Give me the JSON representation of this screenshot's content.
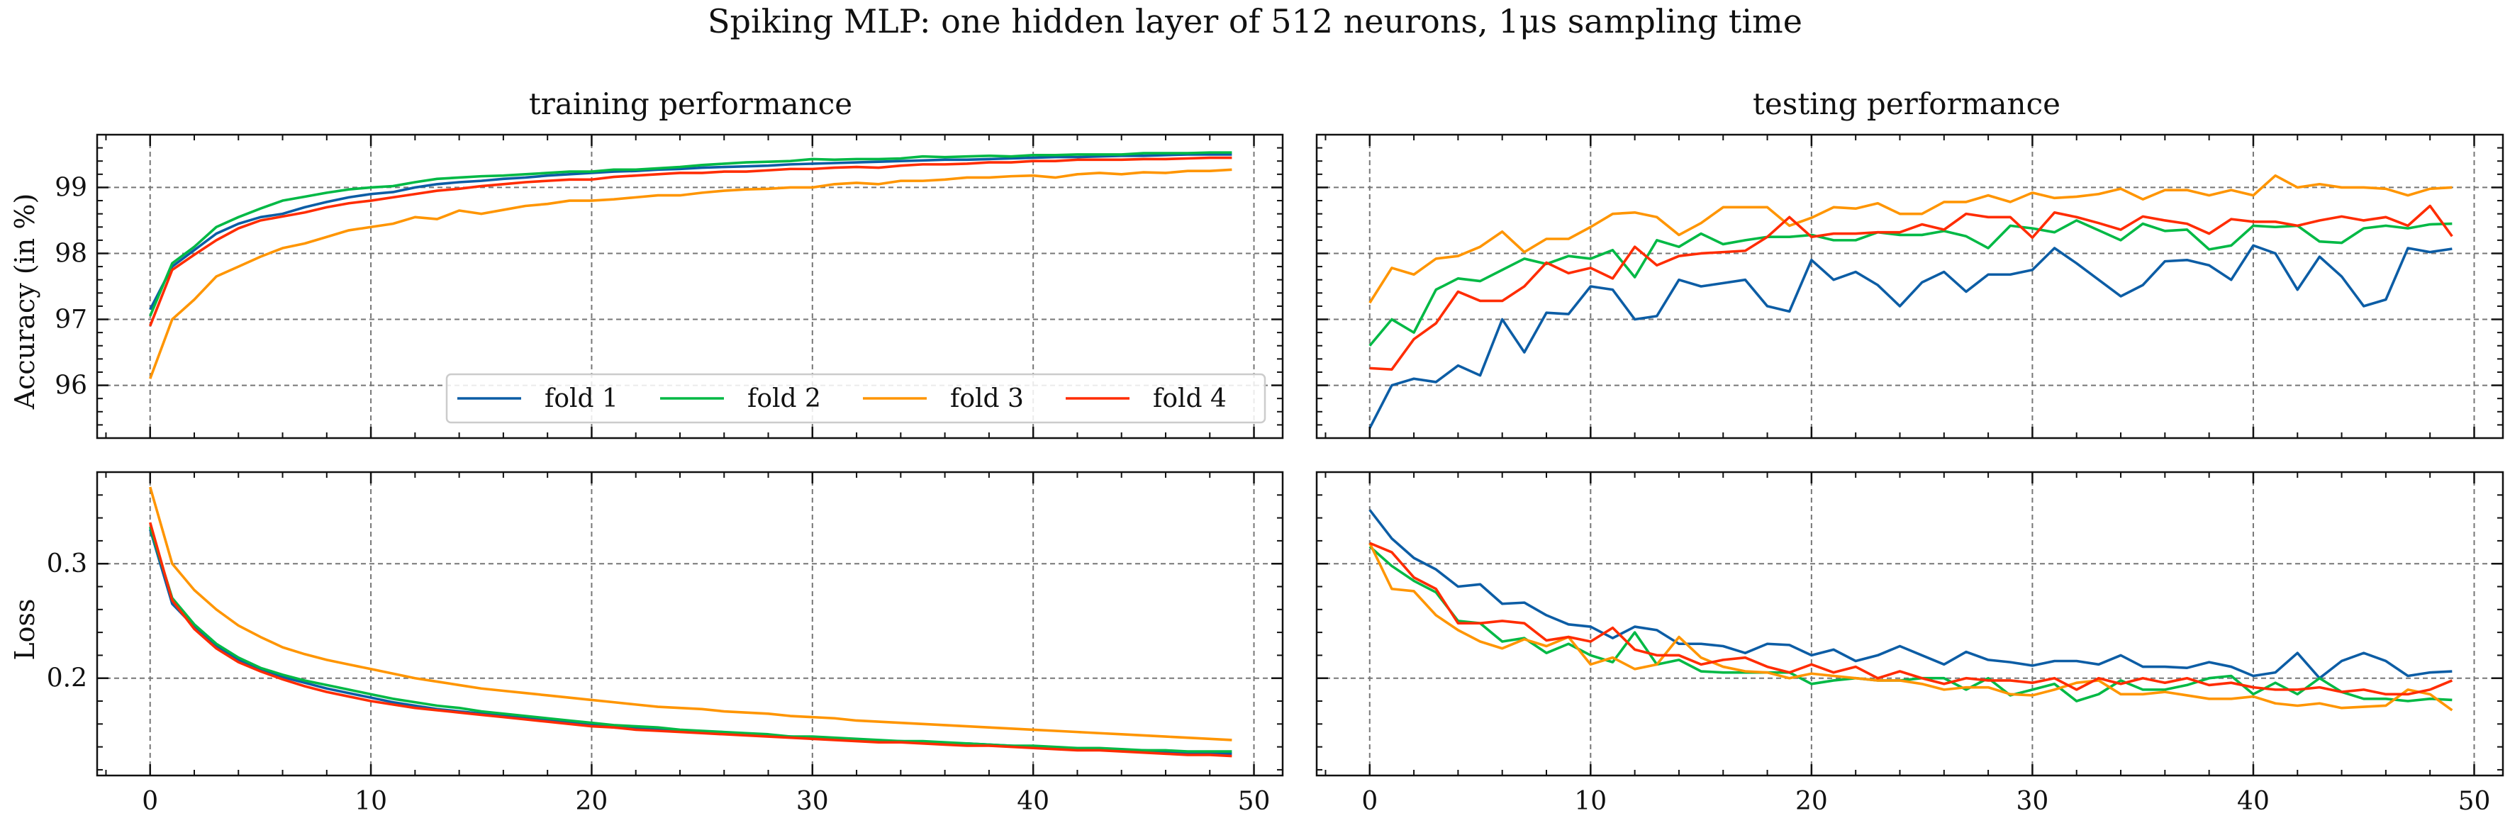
{
  "suptitle": "Spiking MLP: one hidden layer of 512 neurons, 1μs sampling time",
  "colors": {
    "fold 1": "#0C5DA5",
    "fold 2": "#00B945",
    "fold 3": "#FF9500",
    "fold 4": "#FF2C00",
    "grid": "#777777",
    "axis": "#111111"
  },
  "legend": {
    "placement": "lower-right of top-left panel",
    "entries": [
      "fold 1",
      "fold 2",
      "fold 3",
      "fold 4"
    ]
  },
  "chart_data": [
    {
      "id": "train-acc",
      "type": "line",
      "title": "training performance",
      "xlabel": "",
      "ylabel": "Accuracy (in %)",
      "xlim": [
        -2.4,
        51.3
      ],
      "ylim": [
        95.2,
        99.8
      ],
      "xticks": [
        0,
        10,
        20,
        30,
        40,
        50
      ],
      "yticks": [
        96,
        97,
        98,
        99
      ],
      "show_xtick_labels": false,
      "show_ytick_labels": true,
      "grid": true,
      "series": [
        {
          "name": "fold 1",
          "values": [
            97.15,
            97.8,
            98.05,
            98.3,
            98.45,
            98.55,
            98.6,
            98.7,
            98.78,
            98.85,
            98.9,
            98.93,
            99.0,
            99.05,
            99.08,
            99.1,
            99.13,
            99.15,
            99.18,
            99.2,
            99.22,
            99.24,
            99.25,
            99.27,
            99.28,
            99.3,
            99.31,
            99.32,
            99.33,
            99.35,
            99.36,
            99.37,
            99.38,
            99.39,
            99.4,
            99.41,
            99.42,
            99.42,
            99.43,
            99.44,
            99.45,
            99.46,
            99.46,
            99.47,
            99.48,
            99.48,
            99.49,
            99.5,
            99.5,
            99.5
          ]
        },
        {
          "name": "fold 2",
          "values": [
            97.05,
            97.85,
            98.1,
            98.4,
            98.55,
            98.68,
            98.8,
            98.86,
            98.92,
            98.97,
            99.0,
            99.02,
            99.08,
            99.13,
            99.15,
            99.17,
            99.18,
            99.2,
            99.22,
            99.24,
            99.24,
            99.27,
            99.27,
            99.29,
            99.31,
            99.34,
            99.36,
            99.38,
            99.39,
            99.4,
            99.43,
            99.42,
            99.43,
            99.43,
            99.44,
            99.47,
            99.46,
            99.47,
            99.48,
            99.47,
            99.49,
            99.49,
            99.5,
            99.5,
            99.5,
            99.52,
            99.52,
            99.52,
            99.53,
            99.53
          ]
        },
        {
          "name": "fold 3",
          "values": [
            96.1,
            97.0,
            97.3,
            97.65,
            97.8,
            97.95,
            98.08,
            98.15,
            98.25,
            98.35,
            98.4,
            98.45,
            98.55,
            98.52,
            98.65,
            98.6,
            98.66,
            98.72,
            98.75,
            98.8,
            98.8,
            98.82,
            98.85,
            98.88,
            98.88,
            98.92,
            98.95,
            98.97,
            98.98,
            99.0,
            99.0,
            99.05,
            99.07,
            99.05,
            99.1,
            99.1,
            99.12,
            99.15,
            99.15,
            99.17,
            99.18,
            99.15,
            99.2,
            99.22,
            99.2,
            99.23,
            99.22,
            99.25,
            99.25,
            99.27
          ]
        },
        {
          "name": "fold 4",
          "values": [
            96.9,
            97.75,
            97.98,
            98.2,
            98.38,
            98.5,
            98.56,
            98.62,
            98.7,
            98.76,
            98.8,
            98.85,
            98.9,
            98.95,
            98.98,
            99.02,
            99.05,
            99.08,
            99.1,
            99.12,
            99.12,
            99.16,
            99.18,
            99.2,
            99.22,
            99.22,
            99.24,
            99.24,
            99.26,
            99.28,
            99.28,
            99.3,
            99.31,
            99.3,
            99.33,
            99.35,
            99.35,
            99.36,
            99.38,
            99.38,
            99.4,
            99.4,
            99.42,
            99.42,
            99.42,
            99.43,
            99.43,
            99.44,
            99.45,
            99.45
          ]
        }
      ]
    },
    {
      "id": "test-acc",
      "type": "line",
      "title": "testing performance",
      "xlabel": "",
      "ylabel": "",
      "xlim": [
        -2.4,
        51.3
      ],
      "ylim": [
        95.2,
        99.8
      ],
      "xticks": [
        0,
        10,
        20,
        30,
        40,
        50
      ],
      "yticks": [
        96,
        97,
        98,
        99
      ],
      "show_xtick_labels": false,
      "show_ytick_labels": false,
      "grid": true,
      "series": [
        {
          "name": "fold 1",
          "values": [
            95.35,
            96.0,
            96.1,
            96.05,
            96.3,
            96.15,
            97.0,
            96.5,
            97.1,
            97.08,
            97.5,
            97.45,
            97.0,
            97.05,
            97.6,
            97.5,
            97.55,
            97.6,
            97.2,
            97.12,
            97.9,
            97.6,
            97.72,
            97.52,
            97.2,
            97.56,
            97.72,
            97.42,
            97.68,
            97.68,
            97.75,
            98.08,
            97.85,
            97.6,
            97.35,
            97.52,
            97.88,
            97.9,
            97.82,
            97.6,
            98.12,
            98.0,
            97.45,
            97.95,
            97.65,
            97.2,
            97.3,
            98.08,
            98.02,
            98.07
          ]
        },
        {
          "name": "fold 2",
          "values": [
            96.6,
            97.0,
            96.8,
            97.45,
            97.62,
            97.58,
            97.75,
            97.92,
            97.84,
            97.96,
            97.92,
            98.05,
            97.64,
            98.2,
            98.1,
            98.3,
            98.14,
            98.2,
            98.25,
            98.25,
            98.28,
            98.2,
            98.2,
            98.32,
            98.28,
            98.28,
            98.34,
            98.26,
            98.08,
            98.42,
            98.38,
            98.32,
            98.5,
            98.35,
            98.2,
            98.45,
            98.34,
            98.36,
            98.06,
            98.12,
            98.42,
            98.4,
            98.42,
            98.18,
            98.16,
            98.38,
            98.42,
            98.38,
            98.44,
            98.45
          ]
        },
        {
          "name": "fold 3",
          "values": [
            97.25,
            97.78,
            97.68,
            97.92,
            97.96,
            98.1,
            98.33,
            98.02,
            98.22,
            98.22,
            98.4,
            98.6,
            98.62,
            98.55,
            98.28,
            98.46,
            98.7,
            98.7,
            98.7,
            98.42,
            98.54,
            98.7,
            98.68,
            98.76,
            98.6,
            98.6,
            98.78,
            98.78,
            98.88,
            98.78,
            98.92,
            98.84,
            98.86,
            98.9,
            98.98,
            98.82,
            98.96,
            98.96,
            98.88,
            98.96,
            98.88,
            99.18,
            99.0,
            99.05,
            99.0,
            99.0,
            98.98,
            98.88,
            98.98,
            99.0
          ]
        },
        {
          "name": "fold 4",
          "values": [
            96.26,
            96.24,
            96.7,
            96.94,
            97.42,
            97.28,
            97.28,
            97.5,
            97.86,
            97.7,
            97.78,
            97.62,
            98.1,
            97.82,
            97.96,
            98.0,
            98.02,
            98.04,
            98.25,
            98.55,
            98.25,
            98.3,
            98.3,
            98.32,
            98.32,
            98.44,
            98.36,
            98.6,
            98.55,
            98.55,
            98.24,
            98.62,
            98.55,
            98.46,
            98.36,
            98.56,
            98.5,
            98.45,
            98.3,
            98.52,
            98.48,
            98.48,
            98.42,
            98.5,
            98.56,
            98.5,
            98.55,
            98.42,
            98.72,
            98.26
          ]
        }
      ]
    },
    {
      "id": "train-loss",
      "type": "line",
      "title": "",
      "xlabel": "",
      "ylabel": "Loss",
      "xlim": [
        -2.4,
        51.3
      ],
      "ylim": [
        0.115,
        0.38
      ],
      "xticks": [
        0,
        10,
        20,
        30,
        40,
        50
      ],
      "yticks": [
        0.2,
        0.3
      ],
      "show_xtick_labels": true,
      "show_ytick_labels": true,
      "grid": true,
      "series": [
        {
          "name": "fold 1",
          "values": [
            0.33,
            0.265,
            0.245,
            0.228,
            0.216,
            0.208,
            0.201,
            0.196,
            0.191,
            0.187,
            0.183,
            0.179,
            0.176,
            0.173,
            0.171,
            0.169,
            0.167,
            0.165,
            0.163,
            0.161,
            0.159,
            0.157,
            0.156,
            0.155,
            0.154,
            0.153,
            0.152,
            0.151,
            0.15,
            0.149,
            0.148,
            0.147,
            0.146,
            0.145,
            0.145,
            0.144,
            0.143,
            0.143,
            0.142,
            0.141,
            0.14,
            0.139,
            0.139,
            0.138,
            0.137,
            0.137,
            0.136,
            0.135,
            0.135,
            0.134
          ]
        },
        {
          "name": "fold 2",
          "values": [
            0.332,
            0.27,
            0.247,
            0.23,
            0.218,
            0.209,
            0.203,
            0.198,
            0.194,
            0.19,
            0.186,
            0.182,
            0.179,
            0.176,
            0.174,
            0.171,
            0.169,
            0.167,
            0.165,
            0.163,
            0.161,
            0.159,
            0.158,
            0.157,
            0.155,
            0.154,
            0.153,
            0.152,
            0.151,
            0.149,
            0.149,
            0.148,
            0.147,
            0.146,
            0.145,
            0.145,
            0.144,
            0.143,
            0.142,
            0.141,
            0.141,
            0.14,
            0.139,
            0.139,
            0.138,
            0.137,
            0.137,
            0.136,
            0.136,
            0.136
          ]
        },
        {
          "name": "fold 3",
          "values": [
            0.367,
            0.3,
            0.277,
            0.26,
            0.246,
            0.236,
            0.227,
            0.221,
            0.216,
            0.212,
            0.208,
            0.204,
            0.2,
            0.197,
            0.194,
            0.191,
            0.189,
            0.187,
            0.185,
            0.183,
            0.181,
            0.179,
            0.177,
            0.175,
            0.174,
            0.173,
            0.171,
            0.17,
            0.169,
            0.167,
            0.166,
            0.165,
            0.163,
            0.162,
            0.161,
            0.16,
            0.159,
            0.158,
            0.157,
            0.156,
            0.155,
            0.154,
            0.153,
            0.152,
            0.151,
            0.15,
            0.149,
            0.148,
            0.147,
            0.146
          ]
        },
        {
          "name": "fold 4",
          "values": [
            0.336,
            0.268,
            0.243,
            0.226,
            0.214,
            0.206,
            0.199,
            0.193,
            0.188,
            0.184,
            0.18,
            0.177,
            0.174,
            0.172,
            0.17,
            0.168,
            0.166,
            0.164,
            0.162,
            0.16,
            0.158,
            0.157,
            0.155,
            0.154,
            0.153,
            0.152,
            0.151,
            0.15,
            0.149,
            0.148,
            0.147,
            0.146,
            0.145,
            0.144,
            0.144,
            0.143,
            0.142,
            0.141,
            0.141,
            0.14,
            0.139,
            0.138,
            0.137,
            0.137,
            0.136,
            0.135,
            0.134,
            0.133,
            0.133,
            0.132
          ]
        }
      ]
    },
    {
      "id": "test-loss",
      "type": "line",
      "title": "",
      "xlabel": "",
      "ylabel": "",
      "xlim": [
        -2.4,
        51.3
      ],
      "ylim": [
        0.115,
        0.38
      ],
      "xticks": [
        0,
        10,
        20,
        30,
        40,
        50
      ],
      "yticks": [
        0.2,
        0.3
      ],
      "show_xtick_labels": true,
      "show_ytick_labels": false,
      "grid": true,
      "series": [
        {
          "name": "fold 1",
          "values": [
            0.347,
            0.322,
            0.305,
            0.295,
            0.28,
            0.282,
            0.265,
            0.266,
            0.255,
            0.247,
            0.245,
            0.235,
            0.245,
            0.242,
            0.23,
            0.23,
            0.228,
            0.222,
            0.23,
            0.229,
            0.22,
            0.225,
            0.215,
            0.22,
            0.228,
            0.22,
            0.212,
            0.223,
            0.216,
            0.214,
            0.211,
            0.215,
            0.215,
            0.212,
            0.22,
            0.21,
            0.21,
            0.209,
            0.214,
            0.21,
            0.202,
            0.205,
            0.222,
            0.2,
            0.215,
            0.222,
            0.215,
            0.202,
            0.205,
            0.206
          ]
        },
        {
          "name": "fold 2",
          "values": [
            0.315,
            0.298,
            0.285,
            0.275,
            0.25,
            0.248,
            0.232,
            0.235,
            0.222,
            0.23,
            0.22,
            0.214,
            0.24,
            0.212,
            0.216,
            0.206,
            0.205,
            0.205,
            0.205,
            0.205,
            0.195,
            0.198,
            0.2,
            0.198,
            0.198,
            0.2,
            0.2,
            0.19,
            0.2,
            0.185,
            0.19,
            0.195,
            0.18,
            0.186,
            0.198,
            0.19,
            0.19,
            0.194,
            0.2,
            0.202,
            0.186,
            0.196,
            0.186,
            0.2,
            0.188,
            0.182,
            0.182,
            0.18,
            0.182,
            0.181
          ]
        },
        {
          "name": "fold 3",
          "values": [
            0.318,
            0.278,
            0.276,
            0.255,
            0.242,
            0.232,
            0.226,
            0.234,
            0.228,
            0.236,
            0.212,
            0.218,
            0.208,
            0.212,
            0.236,
            0.218,
            0.21,
            0.206,
            0.205,
            0.2,
            0.204,
            0.202,
            0.2,
            0.198,
            0.198,
            0.195,
            0.19,
            0.192,
            0.192,
            0.186,
            0.185,
            0.19,
            0.196,
            0.198,
            0.186,
            0.186,
            0.188,
            0.185,
            0.182,
            0.182,
            0.184,
            0.178,
            0.176,
            0.178,
            0.174,
            0.175,
            0.176,
            0.19,
            0.186,
            0.172
          ]
        },
        {
          "name": "fold 4",
          "values": [
            0.318,
            0.31,
            0.288,
            0.278,
            0.248,
            0.248,
            0.25,
            0.248,
            0.233,
            0.236,
            0.232,
            0.244,
            0.225,
            0.22,
            0.22,
            0.212,
            0.216,
            0.218,
            0.21,
            0.205,
            0.212,
            0.205,
            0.21,
            0.2,
            0.206,
            0.2,
            0.195,
            0.2,
            0.198,
            0.198,
            0.196,
            0.2,
            0.19,
            0.2,
            0.195,
            0.2,
            0.196,
            0.2,
            0.194,
            0.196,
            0.192,
            0.19,
            0.19,
            0.192,
            0.188,
            0.19,
            0.186,
            0.186,
            0.19,
            0.198
          ]
        }
      ]
    }
  ]
}
